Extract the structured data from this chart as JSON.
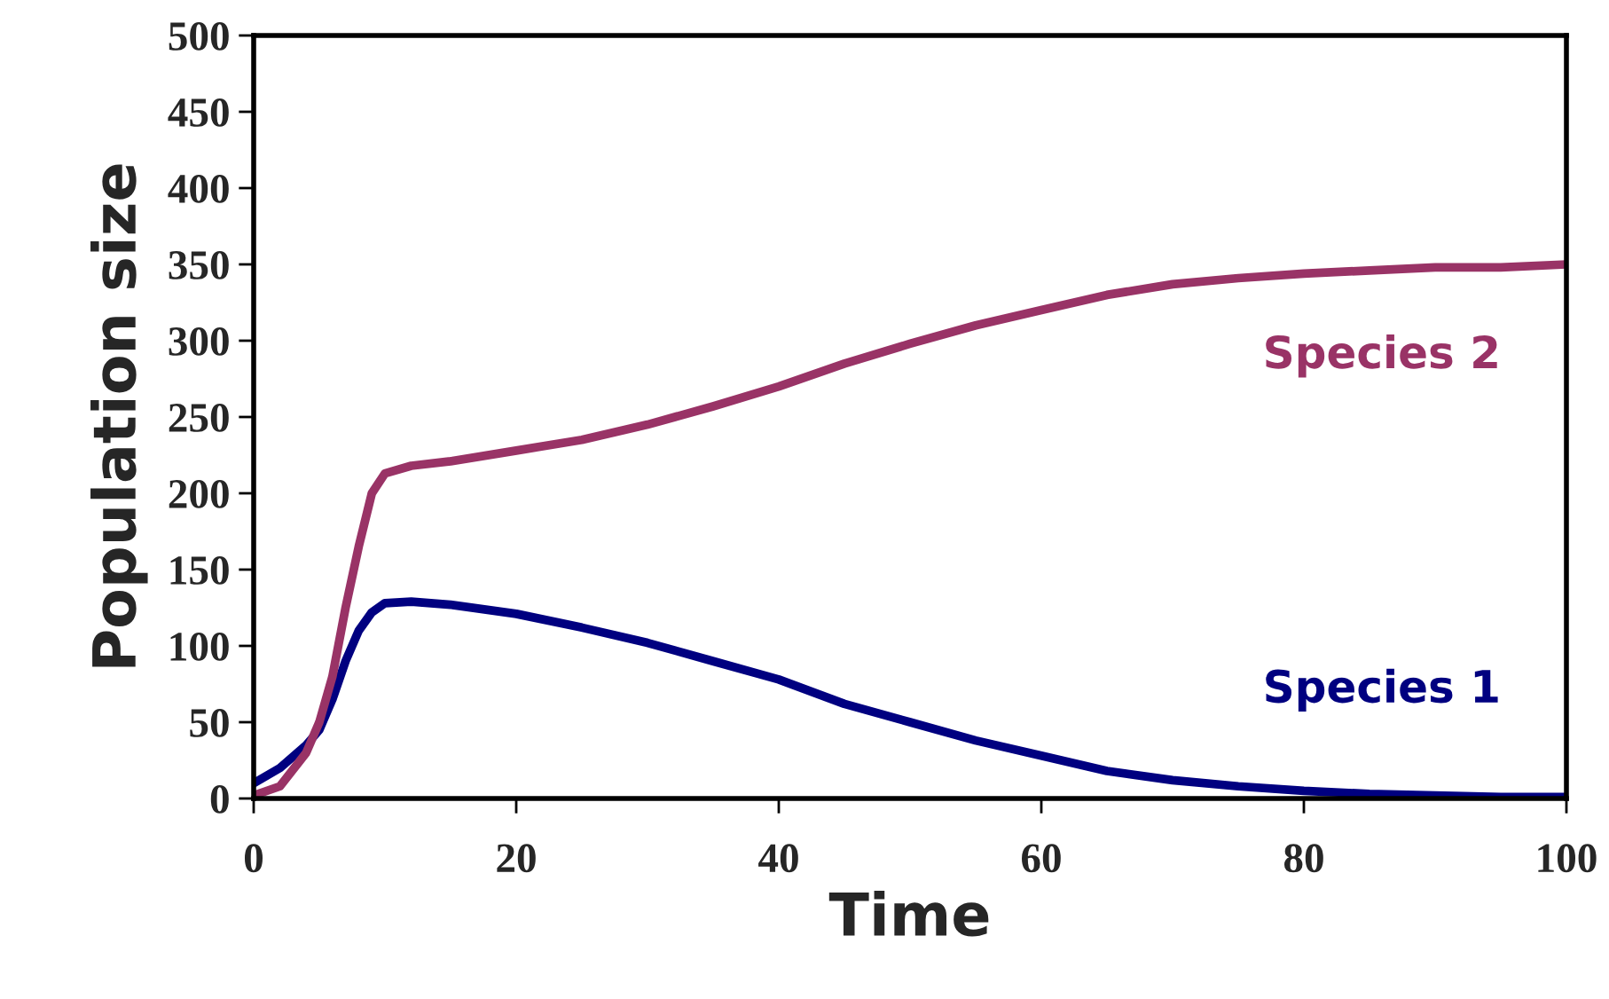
{
  "chart_data": {
    "type": "line",
    "xlabel": "Time",
    "ylabel": "Population size",
    "xlim": [
      0,
      100
    ],
    "ylim": [
      0,
      500
    ],
    "xticks": [
      0,
      20,
      40,
      60,
      80,
      100
    ],
    "yticks": [
      0,
      50,
      100,
      150,
      200,
      250,
      300,
      350,
      400,
      450,
      500
    ],
    "grid": false,
    "legend": false,
    "marker": "none",
    "line_style": "solid",
    "x": [
      0,
      2,
      4,
      5,
      6,
      7,
      8,
      9,
      10,
      12,
      15,
      20,
      25,
      30,
      35,
      40,
      45,
      50,
      55,
      60,
      65,
      70,
      75,
      80,
      85,
      90,
      95,
      100
    ],
    "series": [
      {
        "name": "Species 1",
        "color": "#000080",
        "values": [
          10,
          20,
          35,
          45,
          65,
          90,
          110,
          122,
          128,
          129,
          127,
          121,
          112,
          102,
          90,
          78,
          62,
          50,
          38,
          28,
          18,
          12,
          8,
          5,
          3,
          2,
          1,
          1
        ]
      },
      {
        "name": "Species 2",
        "color": "#993366",
        "values": [
          2,
          8,
          30,
          50,
          80,
          125,
          165,
          200,
          213,
          218,
          221,
          228,
          235,
          245,
          257,
          270,
          285,
          298,
          310,
          320,
          330,
          337,
          341,
          344,
          346,
          348,
          348,
          350
        ]
      }
    ]
  }
}
